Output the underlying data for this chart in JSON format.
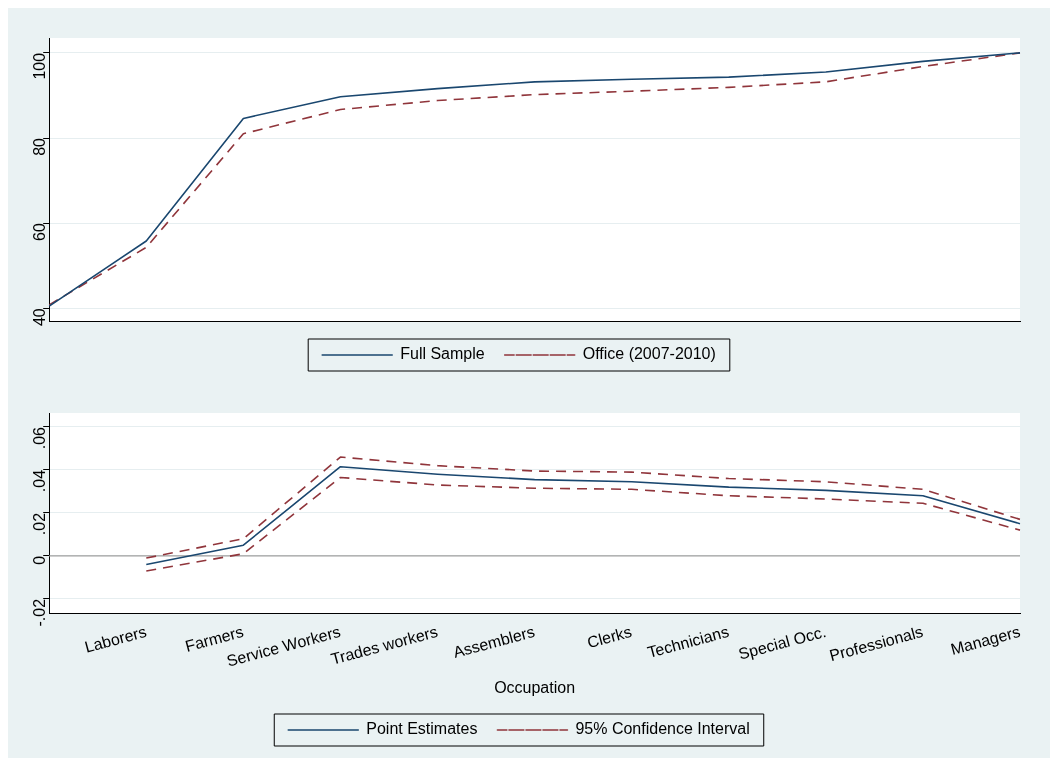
{
  "chart_data": [
    {
      "type": "line",
      "categories": [
        null,
        null,
        null,
        null,
        null,
        null,
        null,
        null,
        null,
        null,
        null
      ],
      "series": [
        {
          "name": "Full Sample",
          "color": "#1a476f",
          "line_style": "solid",
          "values": [
            40.5,
            55.8,
            84.6,
            89.7,
            91.6,
            93.2,
            93.8,
            94.3,
            95.5,
            98,
            100
          ]
        },
        {
          "name": "Office (2007-2010)",
          "color": "#90353b",
          "line_style": "dashed",
          "values": [
            40.8,
            54.3,
            81,
            86.7,
            88.8,
            90.2,
            91,
            91.9,
            93.2,
            96.8,
            100
          ]
        }
      ],
      "ylim": [
        37,
        103.5
      ],
      "yticks": [
        40,
        60,
        80,
        100
      ],
      "grid": "y",
      "legend": "bottom",
      "marker": "none",
      "tick_labels": "y"
    },
    {
      "type": "line",
      "categories": [
        null,
        "Laborers",
        "Farmers",
        "Service Workers",
        "Trades workers",
        "Assemblers",
        "Clerks",
        "Technicians",
        "Special Occ.",
        "Professionals",
        "Managers"
      ],
      "xlabel": "Occupation",
      "series": [
        {
          "name": "Point Estimates",
          "color": "#1a476f",
          "line_style": "solid",
          "values": [
            null,
            -0.004,
            0.005,
            0.0415,
            0.038,
            0.0355,
            0.0345,
            0.032,
            0.0305,
            0.028,
            0.015
          ]
        },
        {
          "name": "95% Confidence Interval",
          "color": "#90353b",
          "line_style": "dashed",
          "values": [
            null,
            -0.001,
            0.008,
            0.046,
            0.042,
            0.0395,
            0.039,
            0.036,
            0.0345,
            0.031,
            0.017
          ]
        },
        {
          "color": "#90353b",
          "line_style": "dashed",
          "values": [
            null,
            -0.007,
            0.001,
            0.0365,
            0.033,
            0.0315,
            0.031,
            0.028,
            0.0265,
            0.0245,
            0.012
          ]
        }
      ],
      "ylim": [
        -0.027,
        0.0665
      ],
      "yticks": [
        {
          "value": -0.02,
          "label": "-.02"
        },
        0,
        {
          "value": 0.02,
          "label": ".02"
        },
        {
          "value": 0.04,
          "label": ".04"
        },
        {
          "value": 0.06,
          "label": ".06"
        }
      ],
      "ref_lines": [
        {
          "axis": "y",
          "value": 0,
          "color": "#a0a0a0"
        }
      ],
      "grid": "y",
      "legend": "bottom",
      "marker": "none"
    }
  ]
}
